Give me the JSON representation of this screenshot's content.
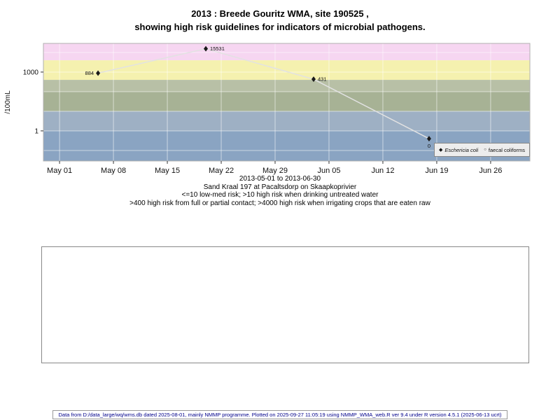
{
  "chart_data": {
    "type": "line",
    "title_lines": [
      "2013 : Breede Gouritz WMA, site 190525 ,",
      "showing high risk guidelines for indicators of microbial pathogens."
    ],
    "ylabel": "/100mL",
    "y_scale": "log",
    "y_domain": [
      0.029,
      29000
    ],
    "y_grid_values": [
      0.1,
      1,
      10,
      100,
      1000,
      10000
    ],
    "y_ticks": [
      {
        "value": 1000,
        "label": "1000"
      },
      {
        "value": 1,
        "label": "1"
      }
    ],
    "x_domain_days": [
      -2.1,
      61.1
    ],
    "x_ticks": [
      {
        "day": 0,
        "label": "May 01"
      },
      {
        "day": 7,
        "label": "May 08"
      },
      {
        "day": 14,
        "label": "May 15"
      },
      {
        "day": 21,
        "label": "May 22"
      },
      {
        "day": 28,
        "label": "May 29"
      },
      {
        "day": 35,
        "label": "Jun 05"
      },
      {
        "day": 42,
        "label": "Jun 12"
      },
      {
        "day": 49,
        "label": "Jun 19"
      },
      {
        "day": 56,
        "label": "Jun 26"
      }
    ],
    "risk_bands": [
      {
        "from": 4000,
        "to": "top",
        "color": "#f6d6f1"
      },
      {
        "from": 400,
        "to": 4000,
        "color": "#f5f1af"
      },
      {
        "from": 100,
        "to": 400,
        "color": "#b8c0a6"
      },
      {
        "from": 10,
        "to": 100,
        "color": "#a7b295"
      },
      {
        "from": 1,
        "to": 10,
        "color": "#9eb0c4"
      },
      {
        "from": "bottom",
        "to": 1,
        "color": "#8aa4c2"
      }
    ],
    "series": [
      {
        "name": "Eschericia coli",
        "marker": "diamond",
        "line_color": "#e2e2e2",
        "marker_color": "#1a1a1a",
        "points": [
          {
            "day": 5,
            "value": 884,
            "label": "884",
            "label_pos": "left"
          },
          {
            "day": 19,
            "value": 15531,
            "label": "15531",
            "label_pos": "right"
          },
          {
            "day": 33,
            "value": 431,
            "label": "431",
            "label_pos": "right"
          },
          {
            "day": 48,
            "value": 0,
            "plot_value": 0.4,
            "label": "0",
            "label_pos": "below"
          }
        ]
      },
      {
        "name": "faecal coliforms",
        "marker": "circle",
        "line_color": "#e2e2e2",
        "marker_color": "#1a1a1a",
        "points": []
      }
    ],
    "legend": [
      {
        "label": "Eschericia coli",
        "marker": "diamond",
        "italic": true
      },
      {
        "label": "faecal coliforms",
        "marker": "circle",
        "italic": false
      }
    ],
    "captions": [
      "2013-05-01 to 2013-06-30",
      "Sand Kraal 197 at Pacaltsdorp on Skaapkoprivier",
      "<=10 low-med risk; >10 high risk when drinking untreated water",
      ">400 high risk from full or partial contact; >4000 high risk when irrigating crops that are eaten raw"
    ]
  },
  "footer": {
    "text": "Data from D:/data_large/wq/wms.db dated 2025-08-01, mainly NMMP programme. Plotted on 2025-09-27 11:05:19 using NMMP_WMA_web.R ver 9.4 under R version 4.5.1 (2025-06-13 ucrt)"
  }
}
